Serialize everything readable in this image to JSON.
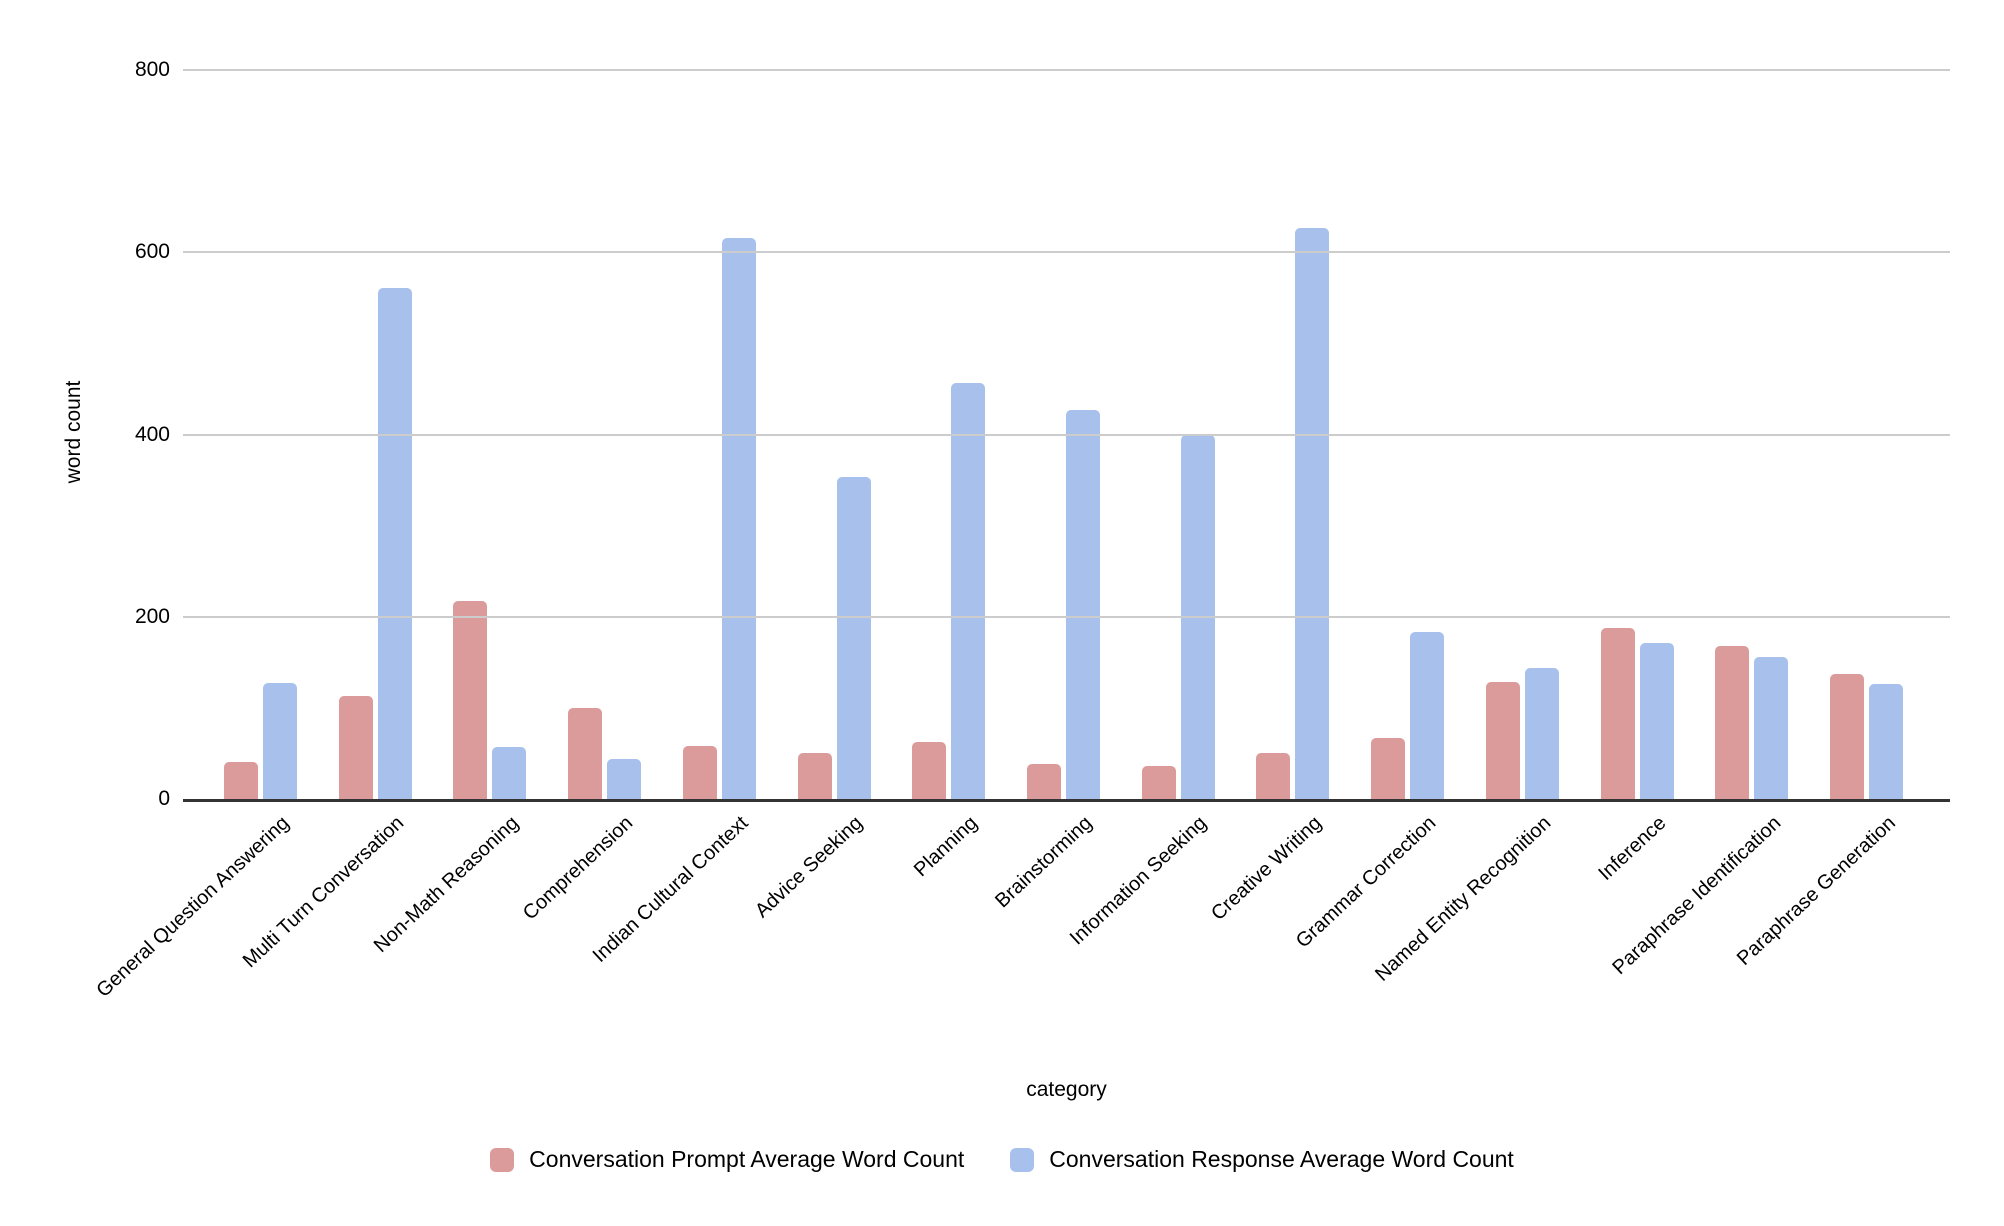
{
  "chart_data": {
    "type": "bar",
    "title": "",
    "xlabel": "category",
    "ylabel": "word count",
    "ylim": [
      0,
      800
    ],
    "yticks": [
      0,
      200,
      400,
      600,
      800
    ],
    "grid": true,
    "legend_position": "bottom",
    "categories": [
      "General Question Answering",
      "Multi Turn Conversation",
      "Non-Math Reasoning",
      "Comprehension",
      "Indian Cultural Context",
      "Advice Seeking",
      "Planning",
      "Brainstorming",
      "Information Seeking",
      "Creative Writing",
      "Grammar Correction",
      "Named Entity Recognition",
      "Inference",
      "Paraphrase Identification",
      "Paraphrase Generation"
    ],
    "series": [
      {
        "name": "Conversation Prompt Average Word Count",
        "color": "#db9b9b",
        "values": [
          41,
          113,
          217,
          100,
          58,
          51,
          63,
          38,
          36,
          51,
          67,
          128,
          188,
          168,
          137
        ]
      },
      {
        "name": "Conversation Response Average Word Count",
        "color": "#a7c1ec",
        "values": [
          127,
          561,
          57,
          44,
          616,
          353,
          456,
          427,
          400,
          627,
          183,
          144,
          171,
          156,
          126
        ]
      }
    ]
  },
  "colors": {
    "gridline": "#cccccc",
    "axis_line": "#333333",
    "text": "#000000",
    "background": "#ffffff"
  }
}
